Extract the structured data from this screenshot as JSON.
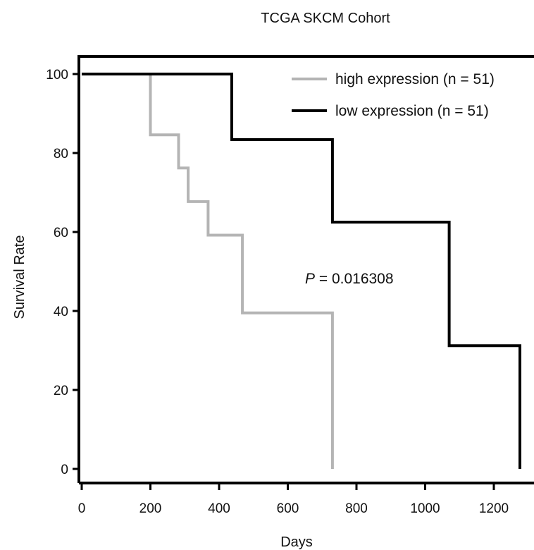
{
  "chart_data": {
    "type": "line",
    "title": "TCGA SKCM Cohort",
    "xlabel": "Days",
    "ylabel": "Survival Rate",
    "xlim": [
      0,
      1310
    ],
    "ylim": [
      -4,
      104
    ],
    "xticks": [
      0,
      200,
      400,
      600,
      800,
      1000,
      1200
    ],
    "yticks": [
      0,
      20,
      40,
      60,
      80,
      100
    ],
    "grid": false,
    "legend_position": "top-right",
    "step": true,
    "series": [
      {
        "name": "high expression (n = 51)",
        "color": "#b4b4b4",
        "points": [
          [
            0,
            100
          ],
          [
            200,
            100
          ],
          [
            200,
            84.6
          ],
          [
            282,
            84.6
          ],
          [
            282,
            76.2
          ],
          [
            310,
            76.2
          ],
          [
            310,
            67.7
          ],
          [
            368,
            67.7
          ],
          [
            368,
            59.2
          ],
          [
            468,
            59.2
          ],
          [
            468,
            39.5
          ],
          [
            730,
            39.5
          ],
          [
            730,
            0
          ]
        ]
      },
      {
        "name": "low expression (n = 51)",
        "color": "#000000",
        "points": [
          [
            0,
            100
          ],
          [
            437,
            100
          ],
          [
            437,
            83.4
          ],
          [
            730,
            83.4
          ],
          [
            730,
            62.5
          ],
          [
            1070,
            62.5
          ],
          [
            1070,
            31.2
          ],
          [
            1276,
            31.2
          ],
          [
            1276,
            0
          ]
        ]
      }
    ],
    "annotations": [
      {
        "prefix": "P",
        "text": " = 0.016308",
        "x": 730,
        "y": 49
      }
    ]
  }
}
